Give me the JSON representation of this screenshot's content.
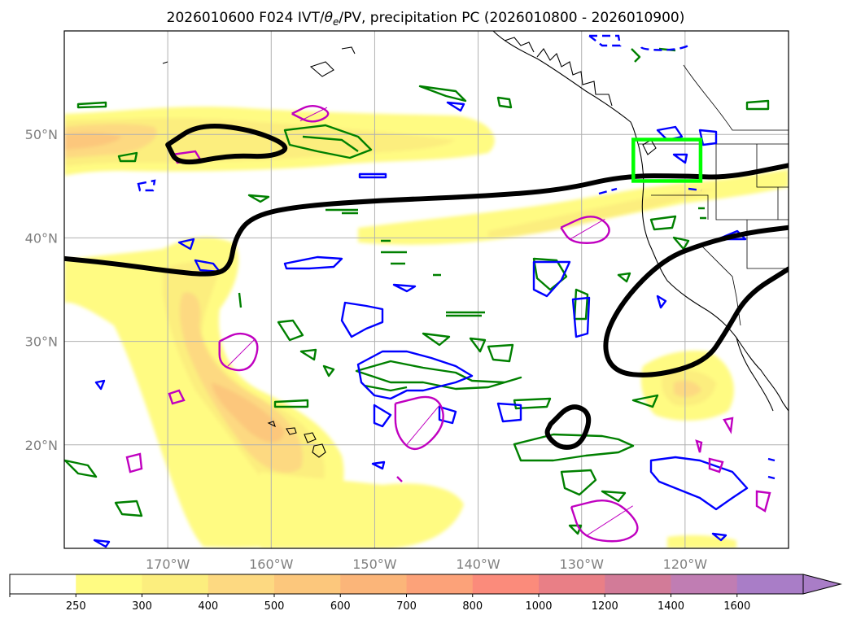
{
  "chart_data": {
    "type": "map",
    "title": "2026010600 F024 IVT/θe/PV, precipitation PC (2026010800 - 2026010900)",
    "title_prefix": "2026010600 F024 IVT/",
    "title_theta": "θ",
    "title_theta_sub": "e",
    "title_suffix": "/PV, precipitation PC (2026010800 - 2026010900)",
    "extent": {
      "lon_min": -180,
      "lon_max": -110,
      "lat_min": 10,
      "lat_max": 60
    },
    "x_ticks": [
      {
        "lon": -170,
        "label": "170°W"
      },
      {
        "lon": -160,
        "label": "160°W"
      },
      {
        "lon": -150,
        "label": "150°W"
      },
      {
        "lon": -140,
        "label": "140°W"
      },
      {
        "lon": -130,
        "label": "130°W"
      },
      {
        "lon": -120,
        "label": "120°W"
      }
    ],
    "y_ticks": [
      {
        "lat": 50,
        "label": "50°N"
      },
      {
        "lat": 40,
        "label": "40°N"
      },
      {
        "lat": 30,
        "label": "30°N"
      },
      {
        "lat": 20,
        "label": "20°N"
      }
    ],
    "colorbar": {
      "levels": [
        250,
        300,
        400,
        500,
        600,
        700,
        800,
        1000,
        1200,
        1400,
        1600
      ],
      "colors": [
        "#ffffff",
        "#fffb82",
        "#fcee7e",
        "#fdd981",
        "#fcc77c",
        "#fbb579",
        "#fca279",
        "#fb8b7b",
        "#e97f86",
        "#d27b98",
        "#c07db3",
        "#a97dc7"
      ],
      "extend": "max"
    },
    "target_box": {
      "lon_min": -125,
      "lon_max": -118.5,
      "lat_min": 45.5,
      "lat_max": 49.5,
      "color": "#00ff00"
    },
    "theta_e_contours": [
      {
        "name": "jet-boundary",
        "points": [
          [
            -180,
            38
          ],
          [
            -175,
            37.5
          ],
          [
            -170,
            36.8
          ],
          [
            -166,
            36.4
          ],
          [
            -164,
            37
          ],
          [
            -163.5,
            40
          ],
          [
            -162,
            42
          ],
          [
            -158,
            43
          ],
          [
            -150,
            43.6
          ],
          [
            -140,
            44
          ],
          [
            -132,
            44.6
          ],
          [
            -126,
            46
          ],
          [
            -120,
            46
          ],
          [
            -116,
            45.8
          ],
          [
            -110,
            47
          ]
        ]
      },
      {
        "name": "north-loop",
        "points": [
          [
            -170,
            49
          ],
          [
            -167,
            51
          ],
          [
            -162,
            50.5
          ],
          [
            -158,
            48.8
          ],
          [
            -160,
            47.8
          ],
          [
            -164,
            48
          ],
          [
            -169,
            47
          ],
          [
            -170,
            49
          ]
        ]
      },
      {
        "name": "east-trough",
        "points": [
          [
            -110,
            41
          ],
          [
            -114,
            40.5
          ],
          [
            -118,
            39.5
          ],
          [
            -122,
            38
          ],
          [
            -126,
            34
          ],
          [
            -128,
            30
          ],
          [
            -127,
            27
          ],
          [
            -123,
            26.6
          ],
          [
            -118,
            28
          ],
          [
            -116,
            31
          ],
          [
            -114,
            34.5
          ],
          [
            -110,
            37
          ]
        ]
      },
      {
        "name": "subtropical-ring",
        "points": [
          [
            -133,
            22
          ],
          [
            -131,
            24
          ],
          [
            -129,
            23
          ],
          [
            -130,
            20
          ],
          [
            -132,
            19.6
          ],
          [
            -133.5,
            21
          ],
          [
            -133,
            22
          ]
        ]
      }
    ],
    "pv_contours": [
      {
        "name": "pv-hawaii-west",
        "points": [
          [
            -165,
            30
          ],
          [
            -163,
            31
          ],
          [
            -161,
            30
          ],
          [
            -162,
            27
          ],
          [
            -165,
            27.5
          ],
          [
            -165,
            30
          ]
        ]
      },
      {
        "name": "pv-central",
        "points": [
          [
            -148,
            24
          ],
          [
            -144,
            25
          ],
          [
            -143,
            22
          ],
          [
            -146,
            19
          ],
          [
            -148,
            21
          ],
          [
            -148,
            24
          ]
        ]
      },
      {
        "name": "pv-west-coast",
        "points": [
          [
            -132,
            41
          ],
          [
            -129,
            42.4
          ],
          [
            -127,
            41
          ],
          [
            -128,
            39.5
          ],
          [
            -131,
            39.5
          ],
          [
            -132,
            41
          ]
        ]
      },
      {
        "name": "pv-north-pacific",
        "points": [
          [
            -158,
            52
          ],
          [
            -156,
            53
          ],
          [
            -154,
            52
          ],
          [
            -156,
            51
          ],
          [
            -158,
            52
          ]
        ]
      },
      {
        "name": "pv-south",
        "points": [
          [
            -131,
            14
          ],
          [
            -127,
            15
          ],
          [
            -124,
            12
          ],
          [
            -126,
            10.5
          ],
          [
            -130,
            11
          ],
          [
            -131,
            14
          ]
        ]
      }
    ]
  }
}
